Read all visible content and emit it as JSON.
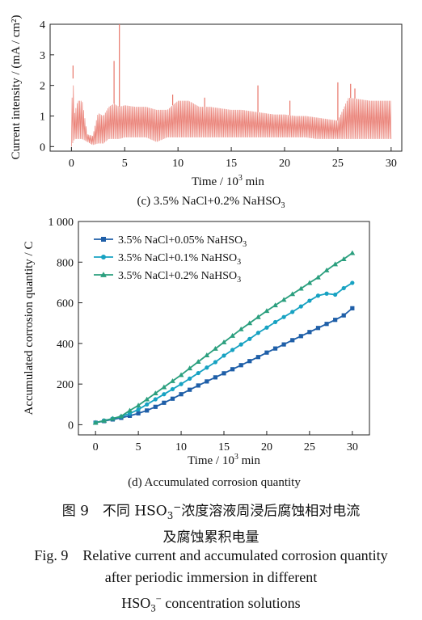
{
  "chart_data": [
    {
      "type": "line",
      "caption_prefix": "(c) 3.5% NaCl+0.2% NaHSO",
      "caption_sub": "3",
      "xlabel_prefix": "Time / 10",
      "xlabel_sup": "3",
      "xlabel_suffix": " min",
      "ylabel": "Current intensity / (mA / cm²)",
      "xlim": [
        -2,
        31
      ],
      "ylim": [
        -0.15,
        4
      ],
      "xticks": [
        "0",
        "5",
        "10",
        "15",
        "20",
        "25",
        "30"
      ],
      "yticks": [
        "0",
        "1",
        "2",
        "3",
        "4"
      ],
      "color": "#e8766a",
      "series": [
        {
          "x": [
            0,
            0.1,
            0.3,
            0.6,
            1.0,
            1.5,
            2.0,
            2.5,
            3.0,
            3.5,
            4.0,
            4.5,
            5.0,
            6.0,
            7.0,
            8.0,
            9.0,
            10.0,
            11.0,
            12.0,
            13.0,
            14.0,
            15.0,
            16.0,
            17.0,
            18.0,
            19.0,
            20.0,
            21.0,
            22.0,
            23.0,
            24.0,
            25.0,
            26.0,
            27.0,
            28.0,
            29.0,
            30.0
          ],
          "low": [
            0.0,
            0.1,
            0.25,
            0.25,
            0.25,
            0.15,
            0.05,
            0.1,
            0.1,
            0.25,
            0.25,
            0.25,
            0.3,
            0.3,
            0.3,
            0.15,
            0.3,
            0.3,
            0.3,
            0.3,
            0.3,
            0.3,
            0.3,
            0.3,
            0.3,
            0.3,
            0.3,
            0.3,
            0.3,
            0.3,
            0.25,
            0.25,
            0.25,
            0.25,
            0.25,
            0.25,
            0.25,
            0.25
          ],
          "high": [
            0.1,
            2.6,
            1.1,
            1.5,
            1.5,
            0.4,
            0.35,
            1.1,
            1.0,
            1.3,
            1.4,
            1.3,
            1.35,
            1.3,
            1.3,
            1.2,
            1.2,
            1.5,
            1.5,
            1.3,
            1.3,
            1.25,
            1.2,
            1.2,
            1.15,
            1.1,
            1.05,
            1.05,
            1.0,
            1.0,
            0.95,
            0.9,
            0.85,
            1.6,
            1.55,
            1.5,
            1.5,
            1.5
          ]
        }
      ],
      "spikes": [
        {
          "x": 0.15,
          "y": 2.65
        },
        {
          "x": 4.0,
          "y": 2.8
        },
        {
          "x": 4.5,
          "y": 4.0
        },
        {
          "x": 9.5,
          "y": 1.7
        },
        {
          "x": 12.5,
          "y": 1.6
        },
        {
          "x": 17.5,
          "y": 2.0
        },
        {
          "x": 20.5,
          "y": 1.5
        },
        {
          "x": 25.0,
          "y": 2.1
        },
        {
          "x": 26.2,
          "y": 2.05
        },
        {
          "x": 26.6,
          "y": 1.9
        }
      ]
    },
    {
      "type": "line",
      "caption": "(d) Accumulated corrosion quantity",
      "xlabel_prefix": "Time / 10",
      "xlabel_sup": "3",
      "xlabel_suffix": " min",
      "ylabel": "Accumulated corrosion quantity / C",
      "xlim": [
        -2,
        32
      ],
      "ylim": [
        -50,
        1000
      ],
      "xticks": [
        "0",
        "5",
        "10",
        "15",
        "20",
        "25",
        "30"
      ],
      "yticks": [
        "0",
        "200",
        "400",
        "600",
        "800",
        "1 000"
      ],
      "legend_position": "top-left",
      "series": [
        {
          "name_prefix": "3.5% NaCl+0.05% NaHSO",
          "name_sub": "3",
          "marker": "square",
          "color": "#1f5fa8",
          "x": [
            0,
            1,
            2,
            3,
            4,
            5,
            6,
            7,
            8,
            9,
            10,
            11,
            12,
            13,
            14,
            15,
            16,
            17,
            18,
            19,
            20,
            21,
            22,
            23,
            24,
            25,
            26,
            27,
            28,
            29,
            30
          ],
          "y": [
            10,
            18,
            26,
            34,
            44,
            56,
            70,
            88,
            108,
            128,
            150,
            172,
            193,
            213,
            233,
            253,
            273,
            293,
            313,
            333,
            355,
            375,
            395,
            416,
            436,
            456,
            476,
            496,
            516,
            538,
            573
          ]
        },
        {
          "name_prefix": "3.5% NaCl+0.1% NaHSO",
          "name_sub": "3",
          "marker": "circle",
          "color": "#17a2c2",
          "x": [
            0,
            1,
            2,
            3,
            4,
            5,
            6,
            7,
            8,
            9,
            10,
            11,
            12,
            13,
            14,
            15,
            16,
            17,
            18,
            19,
            20,
            21,
            22,
            23,
            24,
            25,
            26,
            27,
            28,
            29,
            30
          ],
          "y": [
            10,
            20,
            30,
            40,
            55,
            75,
            100,
            125,
            150,
            175,
            200,
            227,
            254,
            281,
            308,
            340,
            368,
            395,
            422,
            452,
            478,
            505,
            530,
            555,
            582,
            610,
            635,
            645,
            640,
            672,
            698
          ]
        },
        {
          "name_prefix": "3.5% NaCl+0.2% NaHSO",
          "name_sub": "3",
          "marker": "triangle",
          "color": "#2b9f7e",
          "x": [
            0,
            1,
            2,
            3,
            4,
            5,
            6,
            7,
            8,
            9,
            10,
            11,
            12,
            13,
            14,
            15,
            16,
            17,
            18,
            19,
            20,
            21,
            22,
            23,
            24,
            25,
            26,
            27,
            28,
            29,
            30
          ],
          "y": [
            10,
            20,
            30,
            42,
            70,
            95,
            125,
            155,
            185,
            215,
            245,
            278,
            310,
            342,
            374,
            406,
            438,
            470,
            500,
            530,
            560,
            588,
            615,
            643,
            670,
            698,
            725,
            760,
            790,
            815,
            845
          ]
        }
      ]
    }
  ],
  "figure_caption": {
    "cn_prefix": "图 9　不同 HSO",
    "cn_sub": "3",
    "cn_sup": "−",
    "cn_suffix": "浓度溶液周浸后腐蚀相对电流",
    "cn_line2": "及腐蚀累积电量",
    "en_line1": "Fig. 9　Relative current and accumulated corrosion quantity",
    "en_line2": "after periodic immersion in different",
    "en_line3_prefix": "HSO",
    "en_line3_sub": "3",
    "en_line3_sup": "−",
    "en_line3_suffix": " concentration solutions"
  }
}
